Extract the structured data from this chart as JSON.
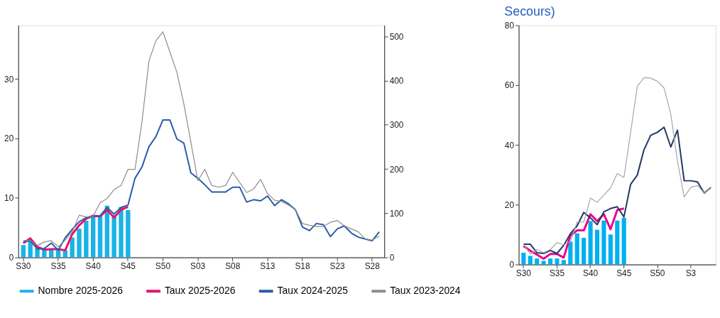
{
  "chart_data": [
    {
      "type": "bar",
      "categories": [
        "S30",
        null,
        null,
        null,
        null,
        "S35",
        null,
        null,
        null,
        null,
        "S40",
        null,
        null,
        null,
        null,
        "S45",
        null,
        null,
        null,
        null,
        "S50",
        null,
        null,
        null,
        null,
        "S03",
        null,
        null,
        null,
        null,
        "S08",
        null,
        null,
        null,
        null,
        "S13",
        null,
        null,
        null,
        null,
        "S18",
        null,
        null,
        null,
        null,
        "S23",
        null,
        null,
        null,
        null,
        "S28",
        null
      ],
      "series": [
        {
          "name": "Nombre 2025-2026",
          "axis": "y2",
          "color": "#1ab3e6",
          "values": [
            28,
            38,
            21,
            17,
            18,
            18,
            16,
            45,
            65,
            83,
            93,
            93,
            117,
            96,
            114,
            107,
            null,
            null,
            null,
            null,
            null,
            null,
            null,
            null,
            null,
            null,
            null,
            null,
            null,
            null,
            null,
            null,
            null,
            null,
            null,
            null,
            null,
            null,
            null,
            null,
            null,
            null,
            null,
            null,
            null,
            null,
            null,
            null,
            null,
            null,
            null,
            null
          ]
        },
        {
          "name": "Taux 2025-2026",
          "type": "line",
          "color": "#e6126e",
          "values": [
            2.4,
            3.2,
            1.8,
            1.3,
            1.4,
            1.4,
            1.2,
            3.9,
            5.4,
            6.5,
            7.0,
            6.9,
            8.0,
            6.7,
            8.0,
            8.5,
            null,
            null,
            null,
            null,
            null,
            null,
            null,
            null,
            null,
            null,
            null,
            null,
            null,
            null,
            null,
            null,
            null,
            null,
            null,
            null,
            null,
            null,
            null,
            null,
            null,
            null,
            null,
            null,
            null,
            null,
            null,
            null,
            null,
            null,
            null,
            null
          ]
        },
        {
          "name": "Taux 2024-2025",
          "type": "line",
          "color": "#2a5ca8",
          "values": [
            2.7,
            2.8,
            1.4,
            1.5,
            2.4,
            1.2,
            3.3,
            4.7,
            6.0,
            6.7,
            6.9,
            7.0,
            8.4,
            7.3,
            8.4,
            8.8,
            13.3,
            15.2,
            18.6,
            20.3,
            23.1,
            23.1,
            19.9,
            19.2,
            14.2,
            13.3,
            12.2,
            11.0,
            11.0,
            11.0,
            11.8,
            11.8,
            9.3,
            9.7,
            9.5,
            10.3,
            8.7,
            9.7,
            9.0,
            8.0,
            5.1,
            4.5,
            5.7,
            5.5,
            3.5,
            4.8,
            5.3,
            4.1,
            3.4,
            3.1,
            2.8,
            4.3
          ]
        },
        {
          "name": "Taux 2023-2024",
          "type": "line",
          "color": "#8c8c8c",
          "values": [
            2.8,
            2.9,
            2.0,
            2.6,
            2.8,
            1.8,
            2.9,
            4.3,
            7.1,
            6.8,
            6.9,
            9.2,
            9.9,
            11.4,
            12.1,
            14.8,
            14.8,
            22.8,
            33.0,
            36.4,
            37.9,
            34.5,
            31.1,
            25.8,
            19.4,
            12.9,
            14.8,
            12.1,
            11.8,
            12.1,
            14.3,
            12.6,
            10.9,
            11.5,
            13.1,
            10.7,
            9.6,
            9.4,
            8.8,
            8.0,
            5.7,
            5.4,
            5.2,
            5.2,
            5.9,
            6.2,
            5.3,
            4.8,
            4.3,
            3.1,
            2.9,
            3.6
          ]
        }
      ],
      "ylim": [
        0,
        39
      ],
      "yticks": [
        0,
        10,
        20,
        30
      ],
      "y2lim": [
        0,
        525
      ],
      "y2ticks": [
        0,
        100,
        200,
        300,
        400,
        500
      ],
      "legend": "bottom",
      "grid": false
    },
    {
      "type": "bar",
      "title": "Secours)",
      "categories": [
        "S30",
        null,
        null,
        null,
        null,
        "S35",
        null,
        null,
        null,
        null,
        "S40",
        null,
        null,
        null,
        null,
        "S45",
        null,
        null,
        null,
        null,
        "S50",
        null,
        null,
        null,
        null,
        "S3",
        null,
        null,
        null
      ],
      "series": [
        {
          "color": "#00b0f0",
          "values": [
            3.9,
            2.9,
            2.0,
            1.2,
            2.0,
            2.0,
            1.5,
            7.6,
            10.4,
            8.9,
            14.5,
            11.6,
            14.7,
            10.0,
            14.7,
            15.6,
            null,
            null,
            null,
            null,
            null,
            null,
            null,
            null,
            null,
            null,
            null,
            null,
            null
          ]
        },
        {
          "type": "line",
          "color": "#ec008c",
          "values": [
            6.2,
            4.6,
            3.3,
            1.9,
            3.5,
            3.5,
            2.3,
            9.7,
            11.4,
            11.4,
            16.8,
            14.5,
            16.8,
            11.8,
            18.2,
            18.7,
            null,
            null,
            null,
            null,
            null,
            null,
            null,
            null,
            null,
            null,
            null,
            null,
            null
          ]
        },
        {
          "type": "line",
          "color": "#1f3864",
          "values": [
            6.8,
            6.8,
            3.9,
            3.7,
            4.7,
            3.7,
            6.4,
            10.3,
            12.9,
            17.4,
            15.6,
            13.3,
            17.6,
            18.7,
            19.3,
            15.9,
            26.8,
            29.9,
            38.4,
            43.2,
            44.2,
            45.9,
            39.3,
            44.9,
            28.0,
            28.0,
            27.6,
            23.9,
            25.8
          ]
        },
        {
          "type": "line",
          "color": "#a6a6a6",
          "values": [
            6.8,
            3.5,
            5.0,
            3.9,
            5.0,
            7.3,
            6.6,
            7.6,
            14.2,
            14.2,
            22.2,
            20.8,
            23.2,
            25.6,
            30.4,
            29.1,
            44.2,
            59.6,
            62.5,
            62.3,
            61.3,
            59.0,
            50.3,
            34.6,
            22.6,
            25.8,
            26.4,
            23.9,
            25.8
          ]
        }
      ],
      "ylim": [
        0,
        80
      ],
      "yticks": [
        0,
        20,
        40,
        60,
        80
      ],
      "grid": false
    }
  ]
}
